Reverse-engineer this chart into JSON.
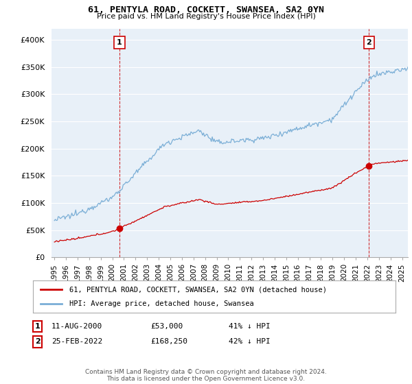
{
  "title": "61, PENTYLA ROAD, COCKETT, SWANSEA, SA2 0YN",
  "subtitle": "Price paid vs. HM Land Registry's House Price Index (HPI)",
  "legend_line1": "61, PENTYLA ROAD, COCKETT, SWANSEA, SA2 0YN (detached house)",
  "legend_line2": "HPI: Average price, detached house, Swansea",
  "footer": "Contains HM Land Registry data © Crown copyright and database right 2024.\nThis data is licensed under the Open Government Licence v3.0.",
  "annotation1_date": "11-AUG-2000",
  "annotation1_price": "£53,000",
  "annotation1_hpi": "41% ↓ HPI",
  "annotation2_date": "25-FEB-2022",
  "annotation2_price": "£168,250",
  "annotation2_hpi": "42% ↓ HPI",
  "sale1_x": 2000.617,
  "sale1_y": 53000,
  "sale2_x": 2022.146,
  "sale2_y": 168250,
  "hpi_color": "#7aaed6",
  "price_color": "#cc0000",
  "annotation_border_color": "#cc0000",
  "background_color": "#ffffff",
  "plot_bg_color": "#e8f0f8",
  "grid_color": "#ffffff",
  "ylim": [
    0,
    420000
  ],
  "xlim_start": 1994.75,
  "xlim_end": 2025.5,
  "yticks": [
    0,
    50000,
    100000,
    150000,
    200000,
    250000,
    300000,
    350000,
    400000
  ],
  "ytick_labels": [
    "£0",
    "£50K",
    "£100K",
    "£150K",
    "£200K",
    "£250K",
    "£300K",
    "£350K",
    "£400K"
  ]
}
